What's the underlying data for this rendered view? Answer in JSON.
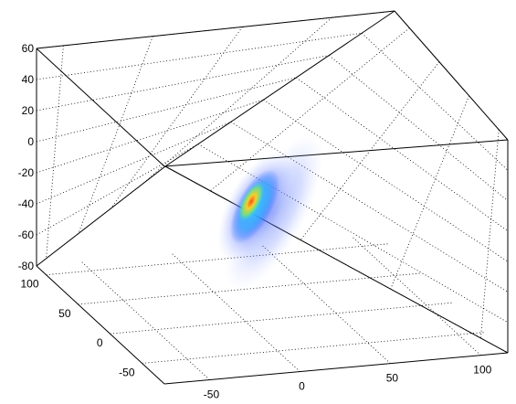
{
  "chart_data": {
    "type": "volume-density",
    "title": "",
    "xlabel": "",
    "ylabel": "",
    "zlabel": "",
    "grid": true,
    "colormap": "jet",
    "xlim": [
      -75,
      115
    ],
    "ylim": [
      -85,
      115
    ],
    "zlim": [
      -80,
      60
    ],
    "z_ticks": [
      "60",
      "40",
      "20",
      "0",
      "-20",
      "-40",
      "-60",
      "-80"
    ],
    "y_ticks": [
      "100",
      "50",
      "0",
      "-50"
    ],
    "x_ticks": [
      "-50",
      "0",
      "50",
      "100"
    ],
    "blob": {
      "center_x": 0,
      "center_y": 0,
      "center_z": -30,
      "peak_value": 1.0
    }
  }
}
